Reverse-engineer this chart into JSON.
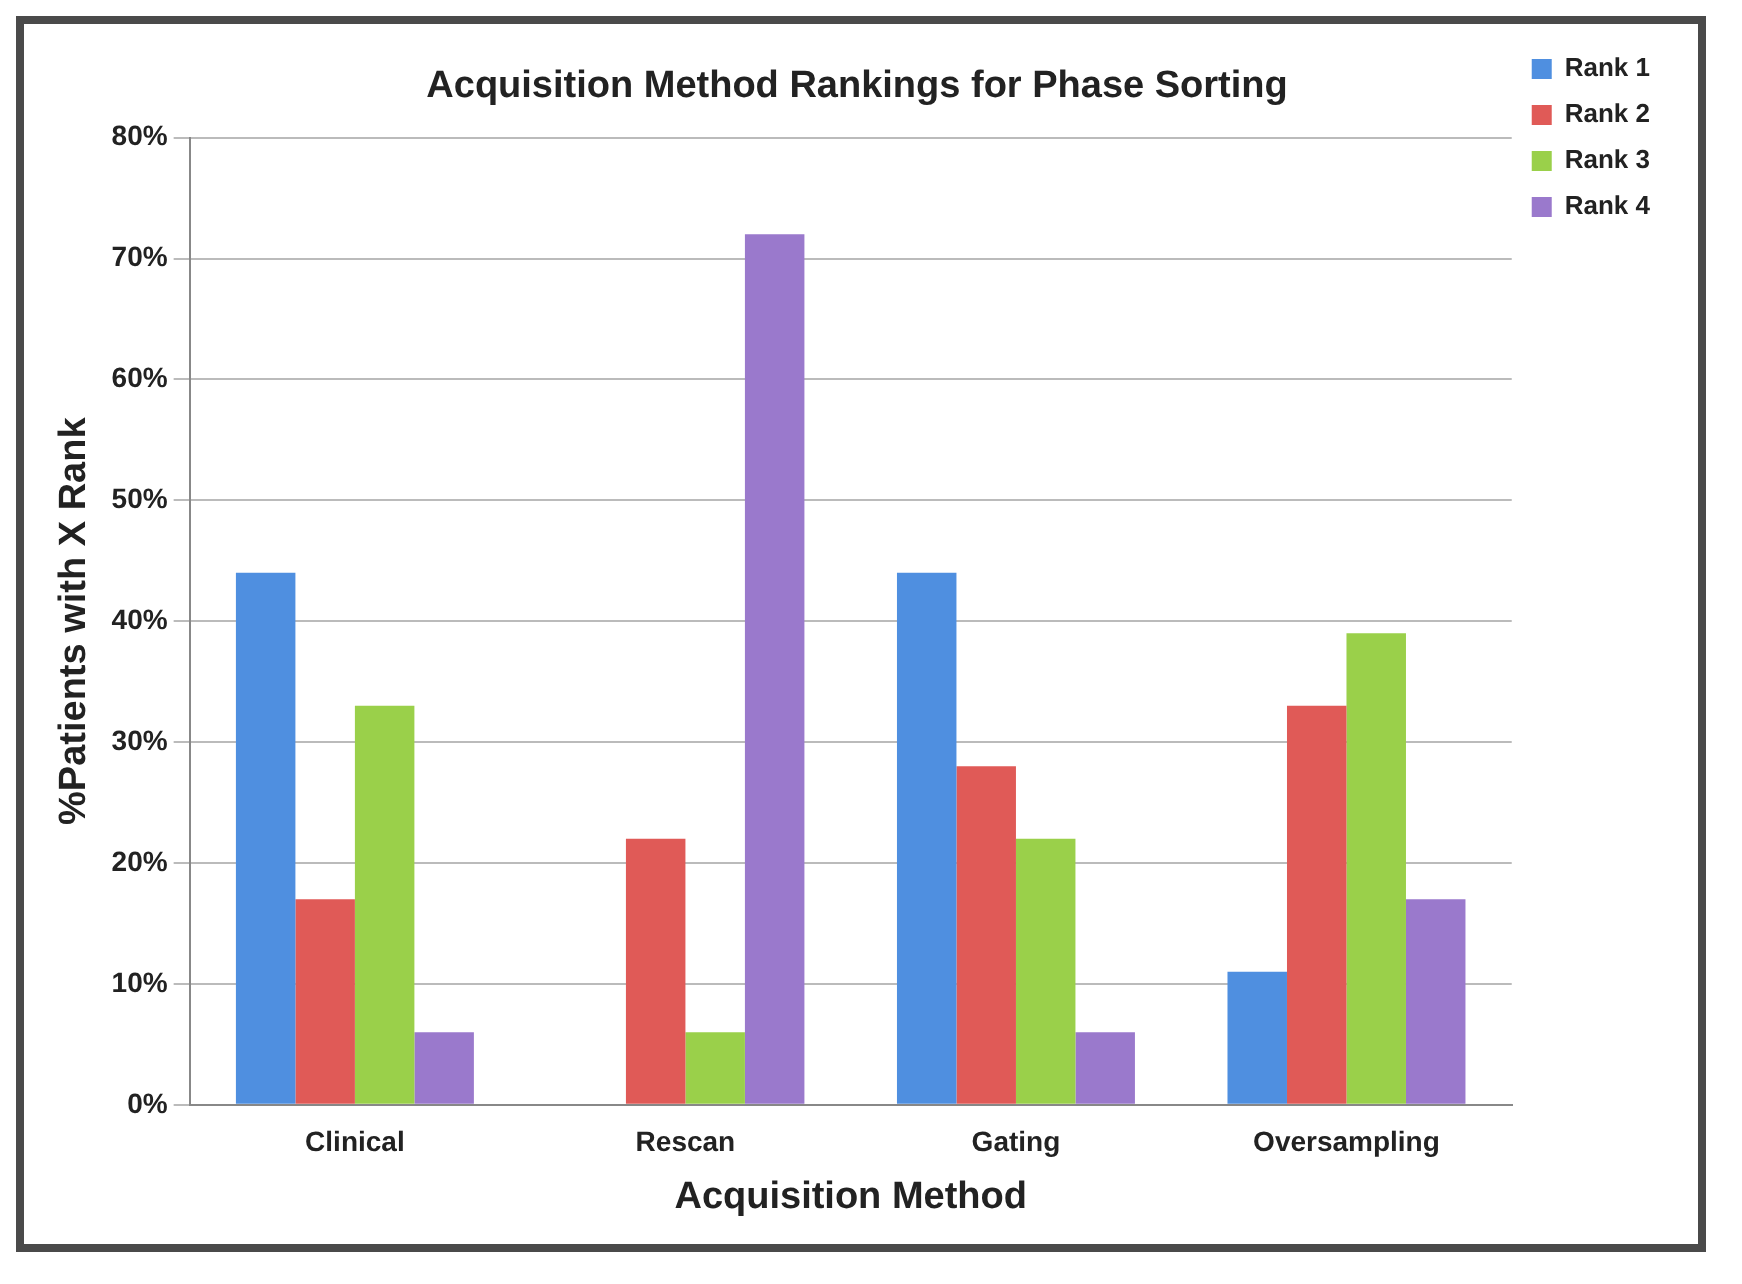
{
  "chart_data": {
    "type": "bar",
    "title": "Acquisition Method Rankings for Phase Sorting",
    "xlabel": "Acquisition Method",
    "ylabel": "%Patients with X Rank",
    "categories": [
      "Clinical",
      "Rescan",
      "Gating",
      "Oversampling"
    ],
    "series": [
      {
        "name": "Rank 1",
        "color": "#4f8fe0",
        "values": [
          44,
          0,
          44,
          11
        ]
      },
      {
        "name": "Rank 2",
        "color": "#e05a57",
        "values": [
          17,
          22,
          28,
          33
        ]
      },
      {
        "name": "Rank 3",
        "color": "#9ad04a",
        "values": [
          33,
          6,
          22,
          39
        ]
      },
      {
        "name": "Rank 4",
        "color": "#9a79cc",
        "values": [
          6,
          72,
          6,
          17
        ]
      }
    ],
    "ylim": [
      0,
      80
    ],
    "yticks": [
      {
        "value": 0,
        "label": "0%"
      },
      {
        "value": 10,
        "label": "10%"
      },
      {
        "value": 20,
        "label": "20%"
      },
      {
        "value": 30,
        "label": "30%"
      },
      {
        "value": 40,
        "label": "40%"
      },
      {
        "value": 50,
        "label": "50%"
      },
      {
        "value": 60,
        "label": "60%"
      },
      {
        "value": 70,
        "label": "70%"
      },
      {
        "value": 80,
        "label": "80%"
      }
    ],
    "grid": "y",
    "legend": "top right"
  }
}
